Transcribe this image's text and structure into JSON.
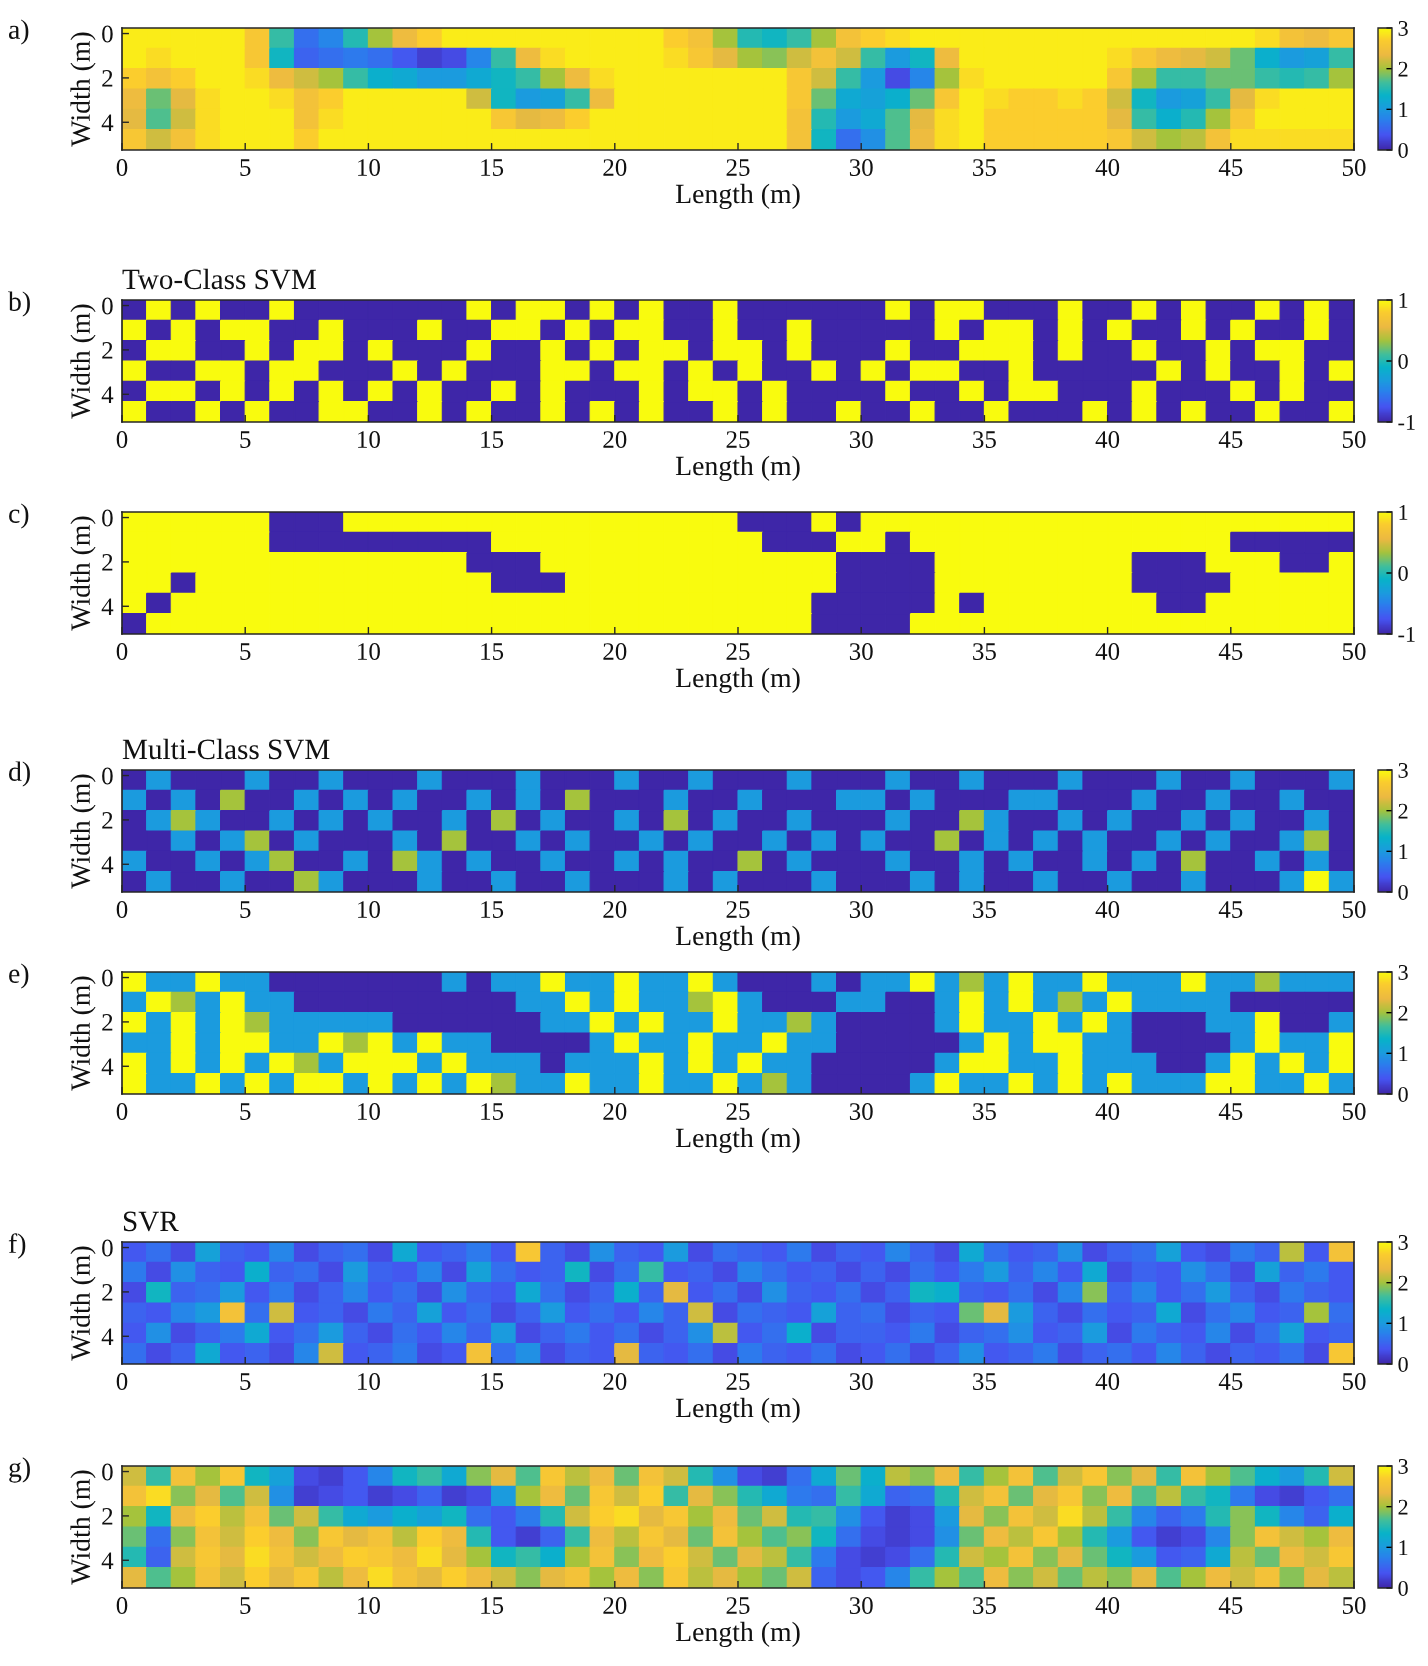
{
  "chart_data": [
    {
      "type": "heatmap",
      "annotations": [
        "a)"
      ],
      "xlabel": "Length (m)",
      "ylabel": "Width (m)",
      "xlim": [
        0,
        50
      ],
      "ylim": [
        5.25,
        -0.25
      ],
      "xticks": [
        0,
        5,
        10,
        15,
        20,
        25,
        30,
        35,
        40,
        45,
        50
      ],
      "yticks": [
        0,
        2,
        4
      ],
      "clim": [
        0,
        3
      ],
      "cticks": [
        0,
        1,
        2,
        3
      ],
      "cells": [
        [
          2.9,
          2.9,
          2.9,
          2.9,
          2.9,
          2.6,
          1.6,
          0.6,
          0.8,
          1.5,
          2.0,
          2.4,
          2.7,
          2.9,
          2.9,
          2.9,
          2.9,
          2.9,
          2.9,
          2.9,
          2.9,
          2.9,
          2.7,
          2.5,
          2.0,
          1.5,
          1.4,
          1.6,
          2.0,
          2.5,
          2.7,
          2.8,
          2.9,
          2.9,
          2.9,
          2.9,
          2.9,
          2.9,
          2.9,
          2.9,
          2.9,
          2.9,
          2.9,
          2.9,
          2.9,
          2.9,
          2.8,
          2.5,
          2.4,
          2.6
        ],
        [
          2.9,
          2.8,
          2.9,
          2.9,
          2.9,
          2.6,
          1.4,
          0.5,
          0.6,
          0.7,
          0.6,
          0.4,
          0.2,
          0.3,
          0.8,
          1.6,
          2.4,
          2.8,
          2.9,
          2.9,
          2.9,
          2.9,
          2.8,
          2.6,
          2.3,
          2.0,
          1.9,
          2.2,
          2.5,
          2.2,
          1.6,
          1.0,
          1.4,
          2.4,
          2.9,
          2.9,
          2.9,
          2.9,
          2.9,
          2.9,
          2.8,
          2.6,
          2.4,
          2.3,
          2.2,
          1.8,
          1.3,
          1.0,
          1.1,
          1.6
        ],
        [
          2.7,
          2.5,
          2.7,
          2.9,
          2.9,
          2.8,
          2.4,
          2.2,
          2.0,
          1.6,
          1.3,
          1.2,
          1.0,
          1.0,
          1.2,
          1.4,
          1.6,
          2.0,
          2.4,
          2.8,
          2.9,
          2.9,
          2.9,
          2.9,
          2.9,
          2.9,
          2.9,
          2.6,
          2.2,
          1.6,
          1.0,
          0.3,
          0.8,
          2.0,
          2.8,
          2.9,
          2.9,
          2.9,
          2.9,
          2.9,
          2.6,
          2.0,
          1.6,
          1.6,
          1.8,
          1.8,
          1.6,
          1.5,
          1.6,
          2.0
        ],
        [
          2.4,
          1.8,
          2.3,
          2.8,
          2.9,
          2.9,
          2.8,
          2.5,
          2.7,
          2.9,
          2.9,
          2.9,
          2.9,
          2.9,
          2.2,
          1.4,
          1.0,
          1.1,
          1.6,
          2.4,
          2.9,
          2.9,
          2.9,
          2.9,
          2.9,
          2.9,
          2.9,
          2.6,
          1.8,
          1.2,
          1.1,
          1.3,
          1.8,
          2.6,
          2.9,
          2.8,
          2.7,
          2.7,
          2.8,
          2.7,
          2.2,
          1.4,
          1.0,
          1.1,
          1.6,
          2.3,
          2.8,
          2.9,
          2.9,
          2.9
        ],
        [
          2.3,
          1.7,
          2.2,
          2.8,
          2.9,
          2.9,
          2.9,
          2.5,
          2.8,
          2.9,
          2.9,
          2.9,
          2.9,
          2.9,
          2.9,
          2.6,
          2.3,
          2.4,
          2.7,
          2.9,
          2.9,
          2.9,
          2.9,
          2.9,
          2.9,
          2.9,
          2.9,
          2.5,
          1.5,
          1.0,
          1.2,
          1.7,
          2.3,
          2.8,
          2.9,
          2.7,
          2.7,
          2.7,
          2.7,
          2.7,
          2.3,
          1.6,
          1.3,
          1.5,
          2.0,
          2.6,
          2.9,
          2.9,
          2.9,
          2.9
        ],
        [
          2.6,
          2.2,
          2.5,
          2.8,
          2.9,
          2.9,
          2.9,
          2.7,
          2.9,
          2.9,
          2.9,
          2.9,
          2.9,
          2.9,
          2.9,
          2.9,
          2.9,
          2.9,
          2.9,
          2.9,
          2.9,
          2.9,
          2.9,
          2.9,
          2.9,
          2.9,
          2.9,
          2.5,
          1.4,
          0.6,
          0.9,
          1.7,
          2.4,
          2.8,
          2.9,
          2.7,
          2.7,
          2.7,
          2.7,
          2.7,
          2.6,
          2.2,
          2.0,
          2.1,
          2.5,
          2.8,
          2.8,
          2.8,
          2.8,
          2.8
        ]
      ]
    },
    {
      "type": "heatmap",
      "title": "Two-Class SVM",
      "annotations": [
        "b)"
      ],
      "xlabel": "Length (m)",
      "ylabel": "Width (m)",
      "xlim": [
        0,
        50
      ],
      "ylim": [
        5.25,
        -0.25
      ],
      "xticks": [
        0,
        5,
        10,
        15,
        20,
        25,
        30,
        35,
        40,
        45,
        50
      ],
      "yticks": [
        0,
        2,
        4
      ],
      "clim": [
        -1,
        1
      ],
      "cticks": [
        -1,
        0,
        1
      ],
      "cells": [
        [
          -1,
          1,
          -1,
          1,
          -1,
          -1,
          1,
          -1,
          -1,
          -1,
          -1,
          -1,
          -1,
          -1,
          1,
          -1,
          1,
          1,
          -1,
          1,
          -1,
          1,
          -1,
          -1,
          1,
          -1,
          -1,
          -1,
          -1,
          -1,
          -1,
          1,
          -1,
          1,
          1,
          -1,
          -1,
          -1,
          1,
          -1,
          -1,
          1,
          -1,
          1,
          -1,
          -1,
          1,
          -1,
          1,
          -1
        ],
        [
          1,
          -1,
          1,
          -1,
          1,
          1,
          -1,
          -1,
          1,
          -1,
          -1,
          -1,
          1,
          -1,
          -1,
          1,
          1,
          -1,
          1,
          -1,
          1,
          1,
          -1,
          -1,
          1,
          -1,
          -1,
          1,
          -1,
          -1,
          -1,
          -1,
          -1,
          1,
          -1,
          1,
          1,
          -1,
          1,
          -1,
          1,
          -1,
          -1,
          1,
          -1,
          1,
          -1,
          -1,
          1,
          -1
        ],
        [
          -1,
          1,
          1,
          -1,
          -1,
          1,
          -1,
          1,
          1,
          -1,
          1,
          -1,
          -1,
          -1,
          1,
          -1,
          -1,
          1,
          -1,
          1,
          -1,
          1,
          1,
          -1,
          1,
          1,
          -1,
          1,
          -1,
          -1,
          -1,
          1,
          -1,
          -1,
          1,
          1,
          1,
          -1,
          1,
          -1,
          -1,
          1,
          -1,
          -1,
          1,
          -1,
          1,
          1,
          -1,
          -1
        ],
        [
          1,
          -1,
          -1,
          1,
          1,
          -1,
          1,
          1,
          -1,
          -1,
          -1,
          1,
          -1,
          1,
          -1,
          -1,
          -1,
          1,
          1,
          -1,
          1,
          1,
          -1,
          1,
          -1,
          1,
          -1,
          -1,
          1,
          -1,
          1,
          -1,
          1,
          1,
          -1,
          -1,
          1,
          -1,
          -1,
          -1,
          -1,
          -1,
          1,
          -1,
          1,
          -1,
          -1,
          1,
          -1,
          1
        ],
        [
          -1,
          1,
          1,
          -1,
          1,
          -1,
          1,
          -1,
          1,
          -1,
          1,
          -1,
          1,
          -1,
          -1,
          1,
          -1,
          1,
          -1,
          -1,
          -1,
          1,
          -1,
          1,
          1,
          -1,
          1,
          -1,
          -1,
          -1,
          -1,
          1,
          -1,
          -1,
          1,
          -1,
          1,
          1,
          -1,
          -1,
          -1,
          1,
          -1,
          -1,
          -1,
          1,
          -1,
          1,
          -1,
          -1
        ],
        [
          1,
          -1,
          -1,
          1,
          -1,
          1,
          -1,
          -1,
          1,
          1,
          -1,
          -1,
          1,
          -1,
          1,
          -1,
          -1,
          1,
          -1,
          1,
          -1,
          1,
          -1,
          -1,
          1,
          -1,
          1,
          -1,
          -1,
          1,
          -1,
          -1,
          1,
          -1,
          -1,
          1,
          -1,
          -1,
          -1,
          1,
          -1,
          1,
          -1,
          1,
          -1,
          -1,
          1,
          -1,
          -1,
          1
        ]
      ]
    },
    {
      "type": "heatmap",
      "annotations": [
        "c)"
      ],
      "xlabel": "Length (m)",
      "ylabel": "Width (m)",
      "xlim": [
        0,
        50
      ],
      "ylim": [
        5.25,
        -0.25
      ],
      "xticks": [
        0,
        5,
        10,
        15,
        20,
        25,
        30,
        35,
        40,
        45,
        50
      ],
      "yticks": [
        0,
        2,
        4
      ],
      "clim": [
        -1,
        1
      ],
      "cticks": [
        -1,
        0,
        1
      ],
      "cells": [
        [
          1,
          1,
          1,
          1,
          1,
          1,
          -1,
          -1,
          -1,
          1,
          1,
          1,
          1,
          1,
          1,
          1,
          1,
          1,
          1,
          1,
          1,
          1,
          1,
          1,
          1,
          -1,
          -1,
          -1,
          1,
          -1,
          1,
          1,
          1,
          1,
          1,
          1,
          1,
          1,
          1,
          1,
          1,
          1,
          1,
          1,
          1,
          1,
          1,
          1,
          1,
          1
        ],
        [
          1,
          1,
          1,
          1,
          1,
          1,
          -1,
          -1,
          -1,
          -1,
          -1,
          -1,
          -1,
          -1,
          -1,
          1,
          1,
          1,
          1,
          1,
          1,
          1,
          1,
          1,
          1,
          1,
          -1,
          -1,
          -1,
          1,
          1,
          -1,
          1,
          1,
          1,
          1,
          1,
          1,
          1,
          1,
          1,
          1,
          1,
          1,
          1,
          -1,
          -1,
          -1,
          -1,
          -1
        ],
        [
          1,
          1,
          1,
          1,
          1,
          1,
          1,
          1,
          1,
          1,
          1,
          1,
          1,
          1,
          -1,
          -1,
          -1,
          1,
          1,
          1,
          1,
          1,
          1,
          1,
          1,
          1,
          1,
          1,
          1,
          -1,
          -1,
          -1,
          -1,
          1,
          1,
          1,
          1,
          1,
          1,
          1,
          1,
          -1,
          -1,
          -1,
          1,
          1,
          1,
          -1,
          -1,
          1
        ],
        [
          1,
          1,
          -1,
          1,
          1,
          1,
          1,
          1,
          1,
          1,
          1,
          1,
          1,
          1,
          1,
          -1,
          -1,
          -1,
          1,
          1,
          1,
          1,
          1,
          1,
          1,
          1,
          1,
          1,
          1,
          -1,
          -1,
          -1,
          -1,
          1,
          1,
          1,
          1,
          1,
          1,
          1,
          1,
          -1,
          -1,
          -1,
          -1,
          1,
          1,
          1,
          1,
          1
        ],
        [
          1,
          -1,
          1,
          1,
          1,
          1,
          1,
          1,
          1,
          1,
          1,
          1,
          1,
          1,
          1,
          1,
          1,
          1,
          1,
          1,
          1,
          1,
          1,
          1,
          1,
          1,
          1,
          1,
          -1,
          -1,
          -1,
          -1,
          -1,
          1,
          -1,
          1,
          1,
          1,
          1,
          1,
          1,
          1,
          -1,
          -1,
          1,
          1,
          1,
          1,
          1,
          1
        ],
        [
          -1,
          1,
          1,
          1,
          1,
          1,
          1,
          1,
          1,
          1,
          1,
          1,
          1,
          1,
          1,
          1,
          1,
          1,
          1,
          1,
          1,
          1,
          1,
          1,
          1,
          1,
          1,
          1,
          -1,
          -1,
          -1,
          -1,
          1,
          1,
          1,
          1,
          1,
          1,
          1,
          1,
          1,
          1,
          1,
          1,
          1,
          1,
          1,
          1,
          1,
          1
        ]
      ]
    },
    {
      "type": "heatmap",
      "title": "Multi-Class SVM",
      "annotations": [
        "d)"
      ],
      "xlabel": "Length (m)",
      "ylabel": "Width (m)",
      "xlim": [
        0,
        50
      ],
      "ylim": [
        5.25,
        -0.25
      ],
      "xticks": [
        0,
        5,
        10,
        15,
        20,
        25,
        30,
        35,
        40,
        45,
        50
      ],
      "yticks": [
        0,
        2,
        4
      ],
      "clim": [
        0,
        3
      ],
      "cticks": [
        0,
        1,
        2,
        3
      ],
      "cells": [
        [
          0,
          1,
          0,
          0,
          0,
          1,
          0,
          0,
          1,
          0,
          0,
          0,
          1,
          0,
          0,
          0,
          1,
          0,
          0,
          0,
          1,
          0,
          0,
          1,
          0,
          0,
          0,
          1,
          0,
          0,
          0,
          1,
          0,
          0,
          1,
          0,
          0,
          0,
          1,
          0,
          0,
          0,
          1,
          0,
          0,
          1,
          0,
          0,
          0,
          1
        ],
        [
          1,
          0,
          1,
          0,
          2,
          0,
          0,
          1,
          0,
          1,
          0,
          1,
          0,
          0,
          1,
          0,
          1,
          0,
          2,
          0,
          0,
          0,
          1,
          0,
          0,
          1,
          0,
          0,
          0,
          1,
          1,
          0,
          1,
          0,
          0,
          0,
          1,
          1,
          0,
          0,
          0,
          1,
          0,
          0,
          1,
          0,
          0,
          1,
          0,
          0
        ],
        [
          0,
          1,
          2,
          1,
          0,
          0,
          1,
          0,
          1,
          0,
          1,
          0,
          0,
          1,
          0,
          2,
          0,
          1,
          0,
          0,
          1,
          0,
          2,
          0,
          1,
          0,
          0,
          1,
          0,
          0,
          0,
          1,
          0,
          0,
          2,
          1,
          0,
          0,
          1,
          0,
          1,
          0,
          0,
          1,
          0,
          1,
          0,
          0,
          1,
          0
        ],
        [
          0,
          0,
          1,
          0,
          1,
          2,
          0,
          1,
          0,
          0,
          0,
          1,
          0,
          2,
          0,
          0,
          1,
          0,
          1,
          0,
          0,
          1,
          0,
          1,
          0,
          0,
          1,
          0,
          1,
          0,
          1,
          0,
          0,
          2,
          0,
          1,
          0,
          1,
          0,
          1,
          0,
          0,
          1,
          0,
          1,
          0,
          0,
          1,
          2,
          0
        ],
        [
          1,
          0,
          0,
          1,
          0,
          1,
          2,
          0,
          0,
          1,
          0,
          2,
          1,
          0,
          1,
          0,
          0,
          1,
          0,
          0,
          1,
          0,
          1,
          0,
          0,
          2,
          0,
          1,
          0,
          0,
          0,
          1,
          0,
          0,
          1,
          0,
          1,
          0,
          0,
          1,
          0,
          1,
          0,
          2,
          0,
          0,
          1,
          0,
          1,
          0
        ],
        [
          0,
          1,
          0,
          0,
          1,
          0,
          0,
          2,
          1,
          0,
          0,
          0,
          1,
          0,
          0,
          1,
          0,
          0,
          1,
          0,
          0,
          0,
          1,
          0,
          1,
          0,
          0,
          0,
          1,
          0,
          0,
          0,
          1,
          0,
          1,
          0,
          0,
          1,
          0,
          0,
          1,
          0,
          0,
          1,
          0,
          0,
          0,
          1,
          3,
          1
        ]
      ]
    },
    {
      "type": "heatmap",
      "annotations": [
        "e)"
      ],
      "xlabel": "Length (m)",
      "ylabel": "Width (m)",
      "xlim": [
        0,
        50
      ],
      "ylim": [
        5.25,
        -0.25
      ],
      "xticks": [
        0,
        5,
        10,
        15,
        20,
        25,
        30,
        35,
        40,
        45,
        50
      ],
      "yticks": [
        0,
        2,
        4
      ],
      "clim": [
        0,
        3
      ],
      "cticks": [
        0,
        1,
        2,
        3
      ],
      "cells": [
        [
          3,
          1,
          1,
          3,
          1,
          1,
          0,
          0,
          0,
          0,
          0,
          0,
          0,
          1,
          0,
          1,
          1,
          3,
          1,
          1,
          3,
          1,
          1,
          3,
          1,
          0,
          0,
          0,
          1,
          0,
          1,
          1,
          3,
          1,
          2,
          1,
          3,
          1,
          1,
          3,
          1,
          1,
          1,
          3,
          1,
          1,
          2,
          1,
          1,
          1
        ],
        [
          1,
          3,
          2,
          1,
          3,
          1,
          1,
          0,
          0,
          0,
          0,
          0,
          0,
          0,
          0,
          0,
          1,
          1,
          3,
          1,
          3,
          1,
          1,
          2,
          3,
          1,
          0,
          0,
          0,
          1,
          1,
          0,
          0,
          1,
          3,
          1,
          3,
          1,
          2,
          1,
          3,
          1,
          1,
          1,
          1,
          0,
          0,
          0,
          0,
          0
        ],
        [
          3,
          1,
          3,
          1,
          3,
          2,
          1,
          1,
          1,
          1,
          1,
          0,
          0,
          0,
          0,
          0,
          0,
          1,
          1,
          3,
          1,
          3,
          1,
          1,
          3,
          1,
          1,
          2,
          1,
          0,
          0,
          0,
          0,
          1,
          3,
          1,
          1,
          3,
          1,
          3,
          1,
          0,
          0,
          0,
          1,
          1,
          3,
          0,
          0,
          1
        ],
        [
          1,
          1,
          3,
          1,
          3,
          3,
          1,
          1,
          3,
          2,
          3,
          1,
          3,
          1,
          1,
          0,
          0,
          0,
          0,
          1,
          3,
          1,
          1,
          3,
          1,
          1,
          3,
          1,
          1,
          0,
          0,
          0,
          0,
          0,
          1,
          3,
          1,
          3,
          3,
          1,
          1,
          0,
          0,
          0,
          0,
          1,
          3,
          1,
          1,
          3
        ],
        [
          3,
          1,
          3,
          1,
          3,
          1,
          3,
          2,
          1,
          3,
          3,
          3,
          1,
          3,
          1,
          1,
          1,
          0,
          1,
          1,
          1,
          3,
          1,
          3,
          1,
          3,
          1,
          1,
          0,
          0,
          0,
          0,
          0,
          1,
          3,
          3,
          1,
          1,
          3,
          1,
          1,
          1,
          0,
          0,
          1,
          3,
          1,
          3,
          1,
          3
        ],
        [
          3,
          1,
          1,
          3,
          1,
          3,
          1,
          3,
          3,
          1,
          3,
          1,
          3,
          1,
          3,
          2,
          1,
          1,
          3,
          1,
          1,
          3,
          1,
          1,
          3,
          1,
          2,
          1,
          0,
          0,
          0,
          0,
          1,
          3,
          1,
          1,
          3,
          1,
          3,
          1,
          3,
          1,
          1,
          1,
          3,
          3,
          1,
          1,
          3,
          1
        ]
      ]
    },
    {
      "type": "heatmap",
      "title": "SVR",
      "annotations": [
        "f)"
      ],
      "xlabel": "Length (m)",
      "ylabel": "Width (m)",
      "xlim": [
        0,
        50
      ],
      "ylim": [
        5.25,
        -0.25
      ],
      "xticks": [
        0,
        5,
        10,
        15,
        20,
        25,
        30,
        35,
        40,
        45,
        50
      ],
      "yticks": [
        0,
        2,
        4
      ],
      "clim": [
        0,
        3
      ],
      "cticks": [
        0,
        1,
        2,
        3
      ],
      "cells": [
        [
          0.4,
          0.6,
          0.3,
          1.1,
          0.5,
          0.4,
          0.8,
          0.3,
          0.5,
          0.6,
          0.3,
          1.2,
          0.4,
          0.5,
          0.7,
          0.4,
          2.6,
          0.5,
          0.3,
          0.9,
          0.5,
          0.4,
          1.0,
          0.3,
          0.6,
          0.5,
          0.4,
          0.7,
          0.3,
          0.5,
          0.4,
          0.8,
          0.5,
          0.3,
          1.2,
          0.6,
          0.4,
          0.5,
          0.9,
          0.3,
          0.5,
          0.6,
          1.1,
          0.4,
          0.3,
          0.7,
          0.5,
          2.1,
          0.4,
          2.5
        ],
        [
          0.7,
          0.3,
          0.9,
          0.5,
          0.4,
          1.3,
          0.5,
          0.6,
          0.3,
          1.0,
          0.5,
          0.4,
          0.8,
          0.3,
          1.1,
          0.6,
          0.4,
          0.5,
          1.4,
          0.3,
          0.6,
          1.6,
          0.4,
          0.5,
          0.3,
          0.8,
          0.6,
          0.4,
          0.5,
          0.3,
          0.5,
          0.3,
          0.6,
          0.4,
          0.7,
          1.0,
          0.5,
          0.8,
          0.4,
          1.2,
          0.3,
          0.5,
          0.4,
          0.9,
          0.6,
          0.3,
          1.1,
          0.5,
          0.7,
          0.4
        ],
        [
          0.3,
          1.4,
          0.5,
          0.6,
          1.0,
          0.4,
          0.7,
          0.3,
          0.5,
          0.8,
          0.4,
          0.6,
          0.3,
          0.9,
          0.5,
          0.4,
          1.2,
          0.6,
          0.3,
          0.5,
          1.3,
          0.5,
          2.3,
          0.4,
          0.6,
          0.3,
          0.9,
          0.5,
          0.4,
          0.6,
          0.3,
          0.5,
          1.4,
          1.3,
          0.5,
          0.4,
          0.6,
          0.3,
          0.8,
          1.9,
          0.5,
          0.8,
          0.4,
          0.6,
          1.0,
          0.5,
          0.3,
          0.7,
          0.5,
          0.4
        ],
        [
          0.5,
          0.4,
          0.8,
          1.0,
          2.5,
          0.6,
          2.2,
          0.4,
          0.5,
          0.3,
          0.7,
          0.5,
          1.1,
          0.4,
          0.6,
          0.3,
          0.5,
          1.0,
          0.4,
          0.6,
          0.4,
          0.8,
          0.5,
          2.2,
          0.3,
          0.6,
          0.5,
          0.4,
          1.1,
          0.5,
          0.6,
          0.3,
          0.5,
          0.4,
          1.8,
          2.3,
          1.0,
          0.5,
          0.3,
          0.6,
          0.4,
          0.5,
          1.2,
          0.3,
          0.6,
          0.8,
          0.4,
          0.5,
          2.0,
          0.6
        ],
        [
          0.4,
          0.9,
          0.3,
          0.5,
          0.7,
          1.2,
          0.4,
          0.6,
          1.0,
          0.5,
          0.3,
          0.6,
          0.4,
          0.8,
          0.5,
          1.0,
          0.3,
          0.5,
          0.7,
          0.4,
          0.6,
          0.3,
          0.5,
          0.9,
          2.1,
          0.4,
          0.6,
          1.3,
          0.3,
          0.5,
          0.5,
          0.4,
          0.7,
          0.3,
          0.5,
          0.6,
          0.9,
          0.4,
          0.5,
          1.0,
          0.3,
          0.7,
          0.5,
          0.4,
          0.8,
          0.3,
          0.6,
          1.1,
          0.4,
          0.5
        ],
        [
          0.6,
          0.3,
          0.5,
          1.2,
          0.4,
          0.5,
          0.3,
          0.8,
          2.2,
          0.4,
          0.5,
          0.7,
          0.3,
          0.4,
          2.5,
          0.6,
          0.9,
          0.3,
          0.5,
          0.4,
          2.3,
          0.5,
          0.4,
          0.6,
          0.3,
          0.7,
          0.5,
          0.4,
          0.6,
          0.3,
          0.4,
          0.6,
          0.3,
          0.5,
          0.9,
          0.4,
          0.5,
          0.7,
          0.3,
          0.5,
          0.6,
          0.4,
          0.8,
          0.5,
          0.3,
          0.5,
          0.4,
          0.6,
          0.3,
          2.6
        ]
      ]
    },
    {
      "type": "heatmap",
      "annotations": [
        "g)"
      ],
      "xlabel": "Length (m)",
      "ylabel": "Width (m)",
      "xlim": [
        0,
        50
      ],
      "ylim": [
        5.25,
        -0.25
      ],
      "xticks": [
        0,
        5,
        10,
        15,
        20,
        25,
        30,
        35,
        40,
        45,
        50
      ],
      "yticks": [
        0,
        2,
        4
      ],
      "clim": [
        0,
        3
      ],
      "cticks": [
        0,
        1,
        2,
        3
      ],
      "cells": [
        [
          2.2,
          1.6,
          2.5,
          2.0,
          2.6,
          1.4,
          1.1,
          0.3,
          0.2,
          0.4,
          0.8,
          1.4,
          1.6,
          1.2,
          1.9,
          2.3,
          1.7,
          2.6,
          2.1,
          2.4,
          1.8,
          2.5,
          2.2,
          1.5,
          0.9,
          0.3,
          0.2,
          0.6,
          1.2,
          1.8,
          1.3,
          2.1,
          1.9,
          2.4,
          1.6,
          2.0,
          2.5,
          1.7,
          2.2,
          2.6,
          1.9,
          2.3,
          1.6,
          2.5,
          2.0,
          1.7,
          1.3,
          1.0,
          1.5,
          2.2
        ],
        [
          2.5,
          2.8,
          1.9,
          2.3,
          1.7,
          2.2,
          0.9,
          0.2,
          0.3,
          0.4,
          0.2,
          0.3,
          0.5,
          0.2,
          0.3,
          1.0,
          2.0,
          2.4,
          1.8,
          2.6,
          2.2,
          2.7,
          1.6,
          2.3,
          1.9,
          1.5,
          1.2,
          0.7,
          0.6,
          1.6,
          1.2,
          0.5,
          0.6,
          1.5,
          2.2,
          2.5,
          1.8,
          2.3,
          2.6,
          1.9,
          2.4,
          1.7,
          2.1,
          1.6,
          1.4,
          0.7,
          0.3,
          0.2,
          0.4,
          0.6
        ],
        [
          2.0,
          1.4,
          2.4,
          2.7,
          2.1,
          2.5,
          1.8,
          2.2,
          1.6,
          1.2,
          1.0,
          1.3,
          1.1,
          1.4,
          0.6,
          0.4,
          0.7,
          1.5,
          2.2,
          2.7,
          2.8,
          2.3,
          2.6,
          2.0,
          2.4,
          1.8,
          2.2,
          1.5,
          1.6,
          0.9,
          0.4,
          0.2,
          0.3,
          1.0,
          2.3,
          1.9,
          2.5,
          2.2,
          2.8,
          2.1,
          1.6,
          0.8,
          0.5,
          0.7,
          1.5,
          1.9,
          1.4,
          0.8,
          0.5,
          1.3
        ],
        [
          1.8,
          0.6,
          1.9,
          2.5,
          2.2,
          2.7,
          2.4,
          1.9,
          2.6,
          2.3,
          2.5,
          2.1,
          2.7,
          2.4,
          1.5,
          0.4,
          0.2,
          0.5,
          1.6,
          2.4,
          2.1,
          2.6,
          2.3,
          1.8,
          2.5,
          2.0,
          1.7,
          1.9,
          1.4,
          0.6,
          0.3,
          0.2,
          0.3,
          0.9,
          1.8,
          2.4,
          2.1,
          2.6,
          2.0,
          1.5,
          1.0,
          0.4,
          0.2,
          0.3,
          0.8,
          1.9,
          2.5,
          2.2,
          2.0,
          2.4
        ],
        [
          1.5,
          0.5,
          2.2,
          2.6,
          2.3,
          2.8,
          2.5,
          2.2,
          2.4,
          2.7,
          2.6,
          2.4,
          2.8,
          2.3,
          2.0,
          1.4,
          1.6,
          1.3,
          2.0,
          2.5,
          1.9,
          2.4,
          2.7,
          2.2,
          1.8,
          2.3,
          2.1,
          1.6,
          0.7,
          0.3,
          0.2,
          0.3,
          0.6,
          1.5,
          2.2,
          2.0,
          2.5,
          1.9,
          2.3,
          1.8,
          1.4,
          1.0,
          0.4,
          0.5,
          1.2,
          2.1,
          1.8,
          2.4,
          2.2,
          2.6
        ],
        [
          2.3,
          1.7,
          2.0,
          2.5,
          2.2,
          2.7,
          2.3,
          2.6,
          2.1,
          2.4,
          2.8,
          2.5,
          2.3,
          2.7,
          2.4,
          2.2,
          1.9,
          2.3,
          2.5,
          2.0,
          2.4,
          1.9,
          2.6,
          2.1,
          2.3,
          2.0,
          1.8,
          2.2,
          0.5,
          0.3,
          0.4,
          0.8,
          1.6,
          2.0,
          1.7,
          2.4,
          1.9,
          2.2,
          1.8,
          2.1,
          1.9,
          2.3,
          1.7,
          2.0,
          2.4,
          2.2,
          2.5,
          1.9,
          2.3,
          2.1
        ]
      ]
    }
  ]
}
